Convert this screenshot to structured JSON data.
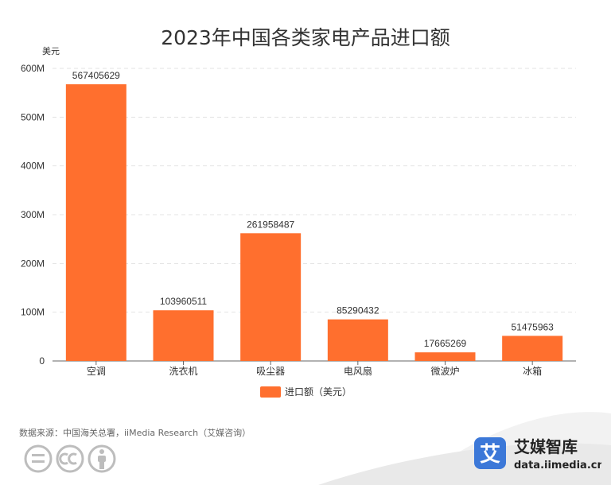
{
  "chart_data": {
    "type": "bar",
    "title": "2023年中国各类家电产品进口额",
    "yunit": "美元",
    "categories": [
      "空调",
      "洗衣机",
      "吸尘器",
      "电风扇",
      "微波炉",
      "冰箱"
    ],
    "series": [
      {
        "name": "进口额（美元）",
        "values": [
          567405629,
          103960511,
          261958487,
          85290432,
          17665269,
          51475963
        ]
      }
    ],
    "value_labels": [
      "567405629",
      "103960511",
      "261958487",
      "85290432",
      "17665269",
      "51475963"
    ],
    "ylim": [
      0,
      600000000
    ],
    "yticks": [
      "0",
      "100M",
      "200M",
      "300M",
      "400M",
      "500M",
      "600M"
    ],
    "grid": true,
    "legend_position": "bottom",
    "bar_color": "#FF6F2E"
  },
  "footer": {
    "source": "数据来源：中国海关总署，iiMedia Research（艾媒咨询）",
    "brand_glyph": "艾",
    "brand_name": "艾媒智库",
    "brand_url": "data.iimedia.cn"
  },
  "icons": [
    "equals-icon",
    "cc-icon",
    "person-icon"
  ]
}
